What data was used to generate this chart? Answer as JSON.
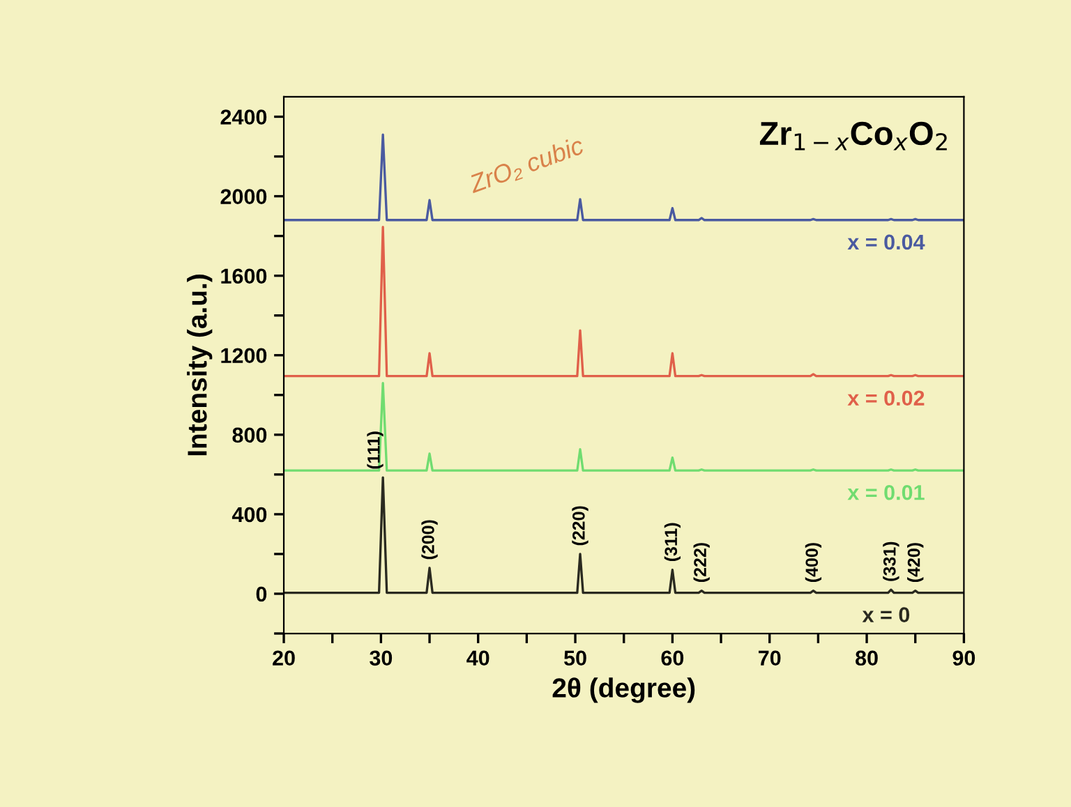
{
  "chart_data": {
    "type": "line",
    "title": "Zr$_{1−x}$Co$_{x}$O$_{2}$",
    "xlabel": "2θ (degree)",
    "ylabel": "Intensity (a.u.)",
    "xlim": [
      20,
      90
    ],
    "xticks": [
      20,
      {
        "value": 25,
        "label": null
      },
      30,
      {
        "value": 35,
        "label": null
      },
      40,
      {
        "value": 45,
        "label": null
      },
      50,
      {
        "value": 55,
        "label": null
      },
      60,
      {
        "value": 65,
        "label": null
      },
      70,
      {
        "value": 75,
        "label": null
      },
      80,
      {
        "value": 85,
        "label": null
      },
      90
    ],
    "ylim": [
      -200,
      2500
    ],
    "yticks": [
      {
        "value": -200,
        "label": null
      },
      0,
      {
        "value": 200,
        "label": null
      },
      400,
      {
        "value": 600,
        "label": null
      },
      800,
      {
        "value": 1000,
        "label": null
      },
      1200,
      {
        "value": 1400,
        "label": null
      },
      1600,
      {
        "value": 1800,
        "label": null
      },
      2000,
      {
        "value": 2200,
        "label": null
      },
      2400
    ],
    "grid": false,
    "legend": false,
    "marker": "none",
    "line_style": "solid",
    "x": [
      20,
      29.8,
      30.2,
      30.6,
      34.7,
      35.0,
      35.3,
      50.2,
      50.5,
      50.8,
      59.7,
      60.0,
      60.3,
      62.7,
      63.0,
      63.3,
      74.2,
      74.5,
      74.8,
      82.2,
      82.5,
      82.8,
      84.7,
      85.0,
      85.3,
      90
    ],
    "series": [
      {
        "name": "x = 0",
        "color": "#2a2a20",
        "values": [
          5,
          5,
          585,
          5,
          5,
          130,
          5,
          5,
          200,
          5,
          5,
          120,
          5,
          5,
          15,
          5,
          5,
          15,
          5,
          5,
          20,
          5,
          5,
          15,
          5,
          5
        ]
      },
      {
        "name": "x = 0.01",
        "color": "#70dc70",
        "values": [
          620,
          620,
          1060,
          620,
          620,
          705,
          620,
          620,
          727,
          620,
          620,
          685,
          620,
          620,
          625,
          620,
          620,
          625,
          620,
          620,
          625,
          620,
          620,
          625,
          620,
          620
        ]
      },
      {
        "name": "x = 0.02",
        "color": "#e0604a",
        "values": [
          1095,
          1095,
          1845,
          1095,
          1095,
          1210,
          1095,
          1095,
          1325,
          1095,
          1095,
          1210,
          1095,
          1095,
          1100,
          1095,
          1095,
          1105,
          1095,
          1095,
          1100,
          1095,
          1095,
          1100,
          1095,
          1095
        ]
      },
      {
        "name": "x = 0.04",
        "color": "#4a5aa0",
        "values": [
          1880,
          1880,
          2310,
          1880,
          1880,
          1980,
          1880,
          1880,
          1985,
          1880,
          1880,
          1940,
          1880,
          1880,
          1890,
          1880,
          1880,
          1885,
          1880,
          1880,
          1885,
          1880,
          1880,
          1885,
          1880,
          1880
        ]
      }
    ],
    "annotations": [
      {
        "text": "(111)",
        "x": 29.8,
        "y": 585
      },
      {
        "text": "(200)",
        "x": 35.0,
        "y": 130
      },
      {
        "text": "(220)",
        "x": 50.5,
        "y": 200
      },
      {
        "text": "(311)",
        "x": 60.0,
        "y": 120
      },
      {
        "text": "(222)",
        "x": 63.0,
        "y": 15
      },
      {
        "text": "(400)",
        "x": 74.5,
        "y": 15
      },
      {
        "text": "(331)",
        "x": 82.5,
        "y": 20
      },
      {
        "text": "(420)",
        "x": 85.0,
        "y": 15
      },
      "ZrO₂ cubic"
    ]
  }
}
